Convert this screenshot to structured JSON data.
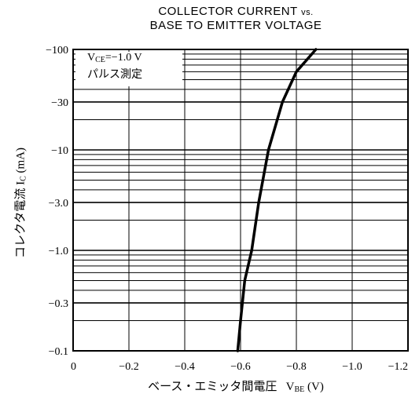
{
  "header": {
    "title_line1_main": "COLLECTOR CURRENT",
    "title_line1_vs": "vs.",
    "title_line2": "BASE TO EMITTER VOLTAGE"
  },
  "annotation": {
    "vce_symbol": "V",
    "vce_sub": "CE",
    "vce_value": "=−1.0 V",
    "pulse": "パルス測定"
  },
  "axes": {
    "y_label_jp": "コレクタ電流",
    "y_symbol": "I",
    "y_sub": "C",
    "y_unit": "(mA)",
    "x_label_jp": "ベース・エミッタ間電圧",
    "x_symbol": "V",
    "x_sub": "BE",
    "x_unit": "(V)"
  },
  "chart_data": {
    "type": "line",
    "x_ticks": [
      {
        "value": 0,
        "label": "0"
      },
      {
        "value": -0.2,
        "label": "−0.2"
      },
      {
        "value": -0.4,
        "label": "−0.4"
      },
      {
        "value": -0.6,
        "label": "−0.6"
      },
      {
        "value": -0.8,
        "label": "−0.8"
      },
      {
        "value": -1.0,
        "label": "−1.0"
      },
      {
        "value": -1.2,
        "label": "−1.2"
      }
    ],
    "y_ticks": [
      {
        "value": -0.1,
        "label": "−0.1"
      },
      {
        "value": -0.3,
        "label": "−0.3"
      },
      {
        "value": -1.0,
        "label": "−1.0"
      },
      {
        "value": -3.0,
        "label": "−3.0"
      },
      {
        "value": -10,
        "label": "−10"
      },
      {
        "value": -30,
        "label": "−30"
      },
      {
        "value": -100,
        "label": "−100"
      }
    ],
    "xlim": [
      0,
      -1.2
    ],
    "ylim": [
      -0.1,
      -100
    ],
    "y_scale": "log",
    "grid": true,
    "series": [
      {
        "points": [
          {
            "x": -0.59,
            "y": -0.1
          },
          {
            "x": -0.6,
            "y": -0.2
          },
          {
            "x": -0.615,
            "y": -0.5
          },
          {
            "x": -0.64,
            "y": -1.0
          },
          {
            "x": -0.665,
            "y": -3.0
          },
          {
            "x": -0.7,
            "y": -10
          },
          {
            "x": -0.75,
            "y": -30
          },
          {
            "x": -0.8,
            "y": -60
          },
          {
            "x": -0.87,
            "y": -100
          }
        ]
      }
    ]
  },
  "colors": {
    "line": "#000000",
    "grid": "#000000",
    "background": "#ffffff"
  }
}
